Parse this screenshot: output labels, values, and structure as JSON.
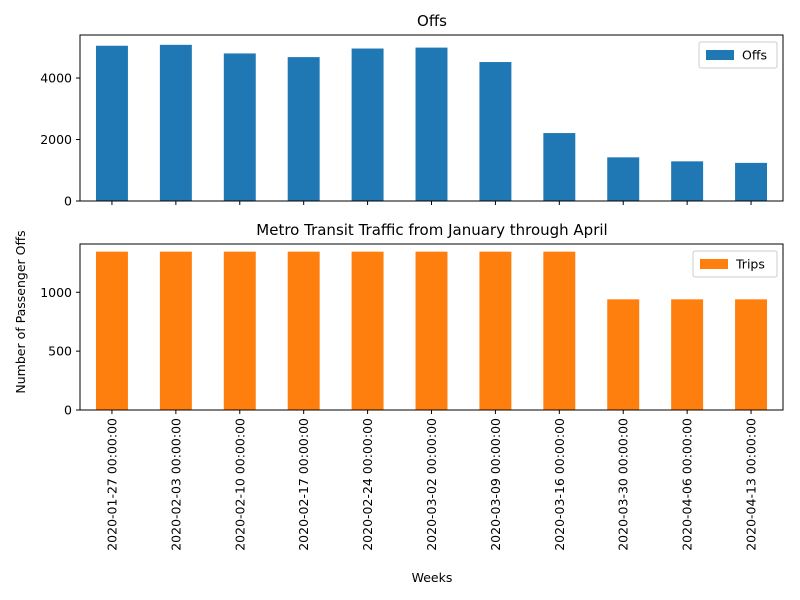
{
  "chart_data": [
    {
      "type": "bar",
      "title": "Offs",
      "categories": [
        "2020-01-27 00:00:00",
        "2020-02-03 00:00:00",
        "2020-02-10 00:00:00",
        "2020-02-17 00:00:00",
        "2020-02-24 00:00:00",
        "2020-03-02 00:00:00",
        "2020-03-09 00:00:00",
        "2020-03-16 00:00:00",
        "2020-03-30 00:00:00",
        "2020-04-06 00:00:00",
        "2020-04-13 00:00:00"
      ],
      "series": [
        {
          "name": "Offs",
          "color": "#1f77b4",
          "values": [
            5050,
            5080,
            4800,
            4680,
            4960,
            4990,
            4520,
            2210,
            1420,
            1290,
            1240
          ]
        }
      ],
      "ylim": [
        0,
        5400
      ],
      "yticks": [
        0,
        2000,
        4000
      ],
      "legend": "top-right",
      "xticklabels_visible": false
    },
    {
      "type": "bar",
      "title": "Metro Transit Traffic from January through April",
      "categories": [
        "2020-01-27 00:00:00",
        "2020-02-03 00:00:00",
        "2020-02-10 00:00:00",
        "2020-02-17 00:00:00",
        "2020-02-24 00:00:00",
        "2020-03-02 00:00:00",
        "2020-03-09 00:00:00",
        "2020-03-16 00:00:00",
        "2020-03-30 00:00:00",
        "2020-04-06 00:00:00",
        "2020-04-13 00:00:00"
      ],
      "series": [
        {
          "name": "Trips",
          "color": "#ff7f0e",
          "values": [
            1345,
            1345,
            1345,
            1345,
            1345,
            1345,
            1345,
            1345,
            940,
            940,
            940
          ]
        }
      ],
      "ylim": [
        0,
        1410
      ],
      "yticks": [
        0,
        500,
        1000
      ],
      "legend": "top-right",
      "xticklabels_visible": true
    }
  ],
  "xlabel": "Weeks",
  "ylabel": "Number of Passenger Offs"
}
